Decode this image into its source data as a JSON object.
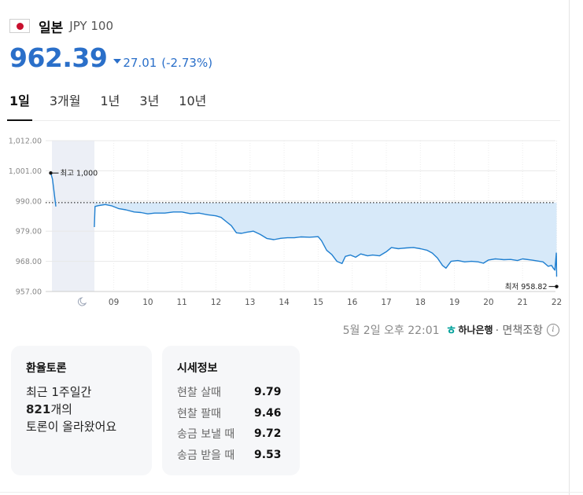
{
  "currency": {
    "country": "일본",
    "code": "JPY 100",
    "price": "962.39",
    "change": "27.01",
    "change_pct": "(-2.73%)"
  },
  "tabs": [
    {
      "label": "1일",
      "active": true
    },
    {
      "label": "3개월",
      "active": false
    },
    {
      "label": "1년",
      "active": false
    },
    {
      "label": "3년",
      "active": false
    },
    {
      "label": "10년",
      "active": false
    }
  ],
  "chart_data": {
    "type": "area",
    "y_ticks": [
      "1,012.00",
      "1,001.00",
      "990.00",
      "979.00",
      "968.00",
      "957.00"
    ],
    "ylim": [
      957,
      1012
    ],
    "x_ticks": [
      "09",
      "10",
      "11",
      "12",
      "13",
      "14",
      "15",
      "16",
      "17",
      "18",
      "19",
      "20",
      "21",
      "22"
    ],
    "x_night_icon": "moon-icon",
    "previous_close": 989.4,
    "annotations": {
      "high": "최고 1,000",
      "low": "최저 958.82"
    },
    "series": [
      {
        "values": [
          [
            7.15,
            1000.2
          ],
          [
            7.2,
            998
          ],
          [
            7.3,
            988
          ],
          [
            8.43,
            980.5
          ],
          [
            8.45,
            988.0
          ],
          [
            8.55,
            988.3
          ],
          [
            8.75,
            988.7
          ],
          [
            8.95,
            988.2
          ],
          [
            9.15,
            987.2
          ],
          [
            9.35,
            986.8
          ],
          [
            9.6,
            986.0
          ],
          [
            9.8,
            985.8
          ],
          [
            10.0,
            985.3
          ],
          [
            10.2,
            985.6
          ],
          [
            10.5,
            985.6
          ],
          [
            10.75,
            986.0
          ],
          [
            11.0,
            986.0
          ],
          [
            11.25,
            985.4
          ],
          [
            11.5,
            985.6
          ],
          [
            11.75,
            985.0
          ],
          [
            12.0,
            984.6
          ],
          [
            12.15,
            984.0
          ],
          [
            12.3,
            982.5
          ],
          [
            12.45,
            981.0
          ],
          [
            12.6,
            978.4
          ],
          [
            12.75,
            978.2
          ],
          [
            12.9,
            978.6
          ],
          [
            13.1,
            979.0
          ],
          [
            13.3,
            977.8
          ],
          [
            13.5,
            976.3
          ],
          [
            13.7,
            975.9
          ],
          [
            13.9,
            976.4
          ],
          [
            14.1,
            976.6
          ],
          [
            14.3,
            976.6
          ],
          [
            14.5,
            976.9
          ],
          [
            14.75,
            976.8
          ],
          [
            15.0,
            977.0
          ],
          [
            15.1,
            975.5
          ],
          [
            15.25,
            972.0
          ],
          [
            15.4,
            970.5
          ],
          [
            15.55,
            968.0
          ],
          [
            15.7,
            967.2
          ],
          [
            15.8,
            969.8
          ],
          [
            15.95,
            970.3
          ],
          [
            16.1,
            969.5
          ],
          [
            16.25,
            970.7
          ],
          [
            16.45,
            970.0
          ],
          [
            16.6,
            970.3
          ],
          [
            16.8,
            970.0
          ],
          [
            17.0,
            971.5
          ],
          [
            17.15,
            973.0
          ],
          [
            17.35,
            972.6
          ],
          [
            17.6,
            972.9
          ],
          [
            17.8,
            973.0
          ],
          [
            18.0,
            972.6
          ],
          [
            18.2,
            972.0
          ],
          [
            18.35,
            971.0
          ],
          [
            18.5,
            969.2
          ],
          [
            18.65,
            966.5
          ],
          [
            18.75,
            965.5
          ],
          [
            18.9,
            968.0
          ],
          [
            19.1,
            968.3
          ],
          [
            19.3,
            967.8
          ],
          [
            19.5,
            968.0
          ],
          [
            19.7,
            967.8
          ],
          [
            19.85,
            967.3
          ],
          [
            20.0,
            968.5
          ],
          [
            20.2,
            968.9
          ],
          [
            20.45,
            968.6
          ],
          [
            20.65,
            968.7
          ],
          [
            20.85,
            968.3
          ],
          [
            21.0,
            968.9
          ],
          [
            21.3,
            968.4
          ],
          [
            21.6,
            967.8
          ],
          [
            21.75,
            966.2
          ],
          [
            21.85,
            966.5
          ],
          [
            21.9,
            965.5
          ],
          [
            21.95,
            964.8
          ],
          [
            21.97,
            968.0
          ],
          [
            21.99,
            971.0
          ],
          [
            22.0,
            962.4
          ]
        ]
      }
    ]
  },
  "timestamp": "5월 2일 오후 22:01",
  "source": {
    "logo_text": "하나은행",
    "logo_mark": "ㅎ",
    "disclaimer": "· 면책조항",
    "info_icon": "info-icon"
  },
  "forum": {
    "title": "환율토론",
    "line1": "최근 1주일간",
    "count": "821",
    "count_suffix": "개의",
    "line3": "토론이 올라왔어요"
  },
  "rates": {
    "title": "시세정보",
    "items": [
      {
        "label": "현찰 살때",
        "value": "9.79"
      },
      {
        "label": "현찰 팔때",
        "value": "9.46"
      },
      {
        "label": "송금 보낼 때",
        "value": "9.72"
      },
      {
        "label": "송금 받을 때",
        "value": "9.53"
      }
    ]
  },
  "colors": {
    "accent": "#2a6fc9",
    "line": "#1f7fd0",
    "fill": "#d7e9f9",
    "night": "#eceff6",
    "hana": "#00a09a"
  }
}
